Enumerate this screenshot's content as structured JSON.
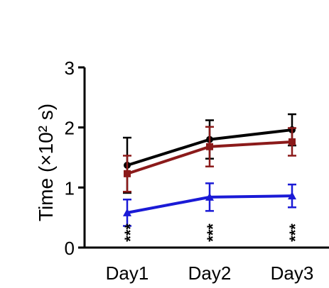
{
  "chart_data": {
    "type": "line",
    "title": "",
    "xlabel": "",
    "ylabel": "Time (×10² s)",
    "ylim": [
      0,
      3
    ],
    "yticks": [
      "0",
      "1",
      "2",
      "3"
    ],
    "categories": [
      "Day1",
      "Day2",
      "Day3"
    ],
    "grid": false,
    "legend": "none",
    "series": [
      {
        "marker": "circle",
        "color": "#000000",
        "values": [
          1.37,
          1.8,
          1.96
        ],
        "errors": [
          0.46,
          0.32,
          0.26
        ]
      },
      {
        "marker": "square",
        "color": "#8b1a1a",
        "values": [
          1.23,
          1.68,
          1.76
        ],
        "errors": [
          0.3,
          0.33,
          0.23
        ]
      },
      {
        "marker": "triangle",
        "color": "#1a1ad6",
        "values": [
          0.58,
          0.84,
          0.86
        ],
        "errors": [
          0.22,
          0.23,
          0.19
        ]
      }
    ],
    "annotations": [
      {
        "text": "***",
        "category": "Day1"
      },
      {
        "text": "***",
        "category": "Day2"
      },
      {
        "text": "***",
        "category": "Day3"
      }
    ]
  }
}
